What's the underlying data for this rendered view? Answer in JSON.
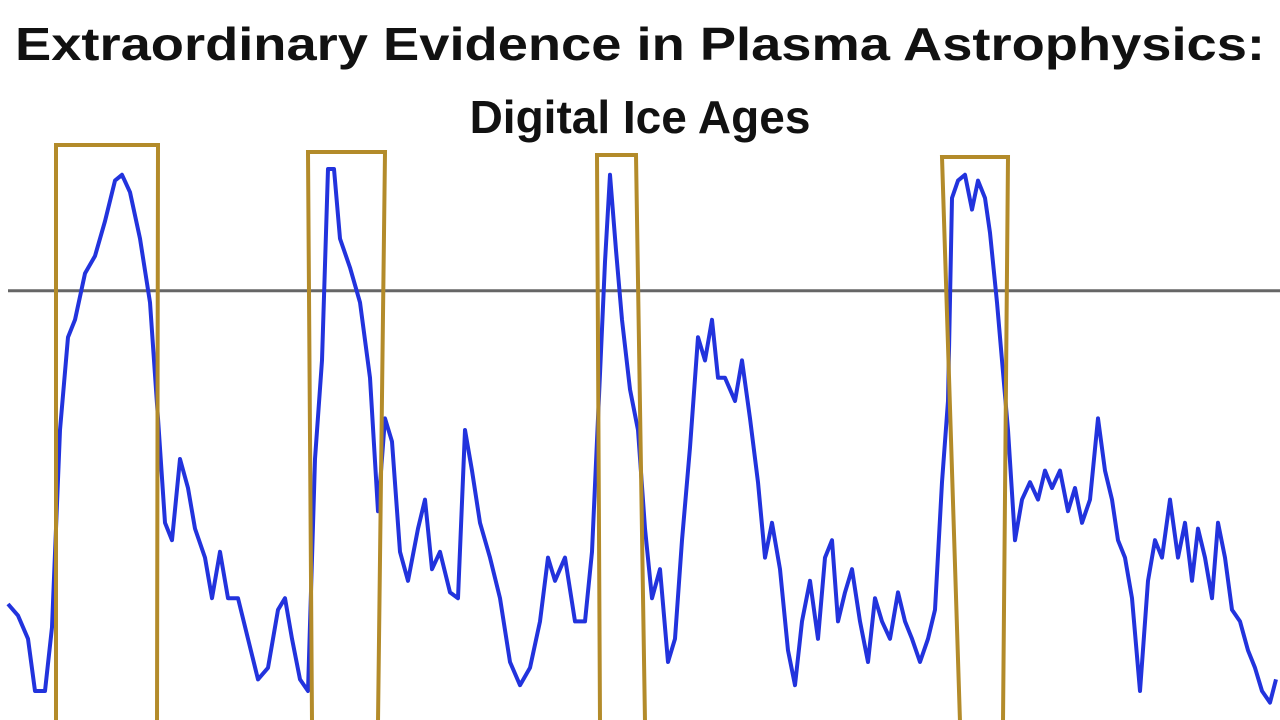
{
  "chart_data": {
    "type": "line",
    "title": "Extraordinary Evidence in Plasma Astrophysics:",
    "subtitle": "Digital Ice Ages",
    "x": [
      8,
      18,
      28,
      35,
      45,
      52,
      60,
      68,
      75,
      85,
      95,
      105,
      115,
      122,
      130,
      140,
      150,
      158,
      165,
      172,
      180,
      188,
      195,
      205,
      212,
      220,
      228,
      238,
      248,
      258,
      268,
      278,
      285,
      292,
      300,
      308,
      315,
      322,
      328,
      334,
      340,
      350,
      360,
      370,
      378,
      385,
      392,
      400,
      408,
      418,
      425,
      432,
      440,
      450,
      458,
      465,
      472,
      480,
      490,
      500,
      510,
      520,
      530,
      540,
      548,
      555,
      565,
      575,
      585,
      592,
      598,
      605,
      610,
      616,
      622,
      630,
      638,
      645,
      652,
      660,
      668,
      675,
      682,
      690,
      698,
      705,
      712,
      718,
      725,
      735,
      742,
      750,
      758,
      765,
      772,
      780,
      788,
      795,
      802,
      810,
      818,
      825,
      832,
      838,
      845,
      852,
      860,
      868,
      875,
      882,
      890,
      898,
      905,
      912,
      920,
      928,
      935,
      942,
      948,
      952,
      958,
      965,
      972,
      978,
      985,
      990,
      997,
      1003,
      1008,
      1015,
      1022,
      1030,
      1038,
      1045,
      1052,
      1060,
      1068,
      1075,
      1082,
      1090,
      1098,
      1105,
      1112,
      1118,
      1125,
      1132,
      1140,
      1148,
      1155,
      1162,
      1170,
      1178,
      1185,
      1192,
      1198,
      1205,
      1212,
      1218,
      1225,
      1232,
      1240,
      1248,
      1255,
      1262,
      1270,
      1276
    ],
    "values": [
      20,
      18,
      14,
      5,
      5,
      16,
      50,
      66,
      69,
      77,
      80,
      86,
      93,
      94,
      91,
      83,
      72,
      52,
      34,
      31,
      45,
      40,
      33,
      28,
      21,
      29,
      21,
      21,
      14,
      7,
      9,
      19,
      21,
      14,
      7,
      5,
      45,
      62,
      95,
      95,
      83,
      78,
      72,
      59,
      36,
      52,
      48,
      29,
      24,
      33,
      38,
      26,
      29,
      22,
      21,
      50,
      43,
      34,
      28,
      21,
      10,
      6,
      9,
      17,
      28,
      24,
      28,
      17,
      17,
      29,
      52,
      79,
      94,
      81,
      69,
      57,
      50,
      33,
      21,
      26,
      10,
      14,
      31,
      47,
      66,
      62,
      69,
      59,
      59,
      55,
      62,
      52,
      41,
      28,
      34,
      26,
      12,
      6,
      17,
      24,
      14,
      28,
      31,
      17,
      22,
      26,
      17,
      10,
      21,
      17,
      14,
      22,
      17,
      14,
      10,
      14,
      19,
      41,
      55,
      90,
      93,
      94,
      88,
      93,
      90,
      84,
      72,
      60,
      50,
      31,
      38,
      41,
      38,
      43,
      40,
      43,
      36,
      40,
      34,
      38,
      52,
      43,
      38,
      31,
      28,
      21,
      5,
      24,
      31,
      28,
      38,
      28,
      34,
      24,
      33,
      28,
      21,
      34,
      28,
      19,
      17,
      12,
      9,
      5,
      3,
      7
    ],
    "color": "#2233dd",
    "xlim": [
      0,
      1280
    ],
    "ylim": [
      0,
      100
    ],
    "hline": 74,
    "hline_color": "#666666"
  }
}
